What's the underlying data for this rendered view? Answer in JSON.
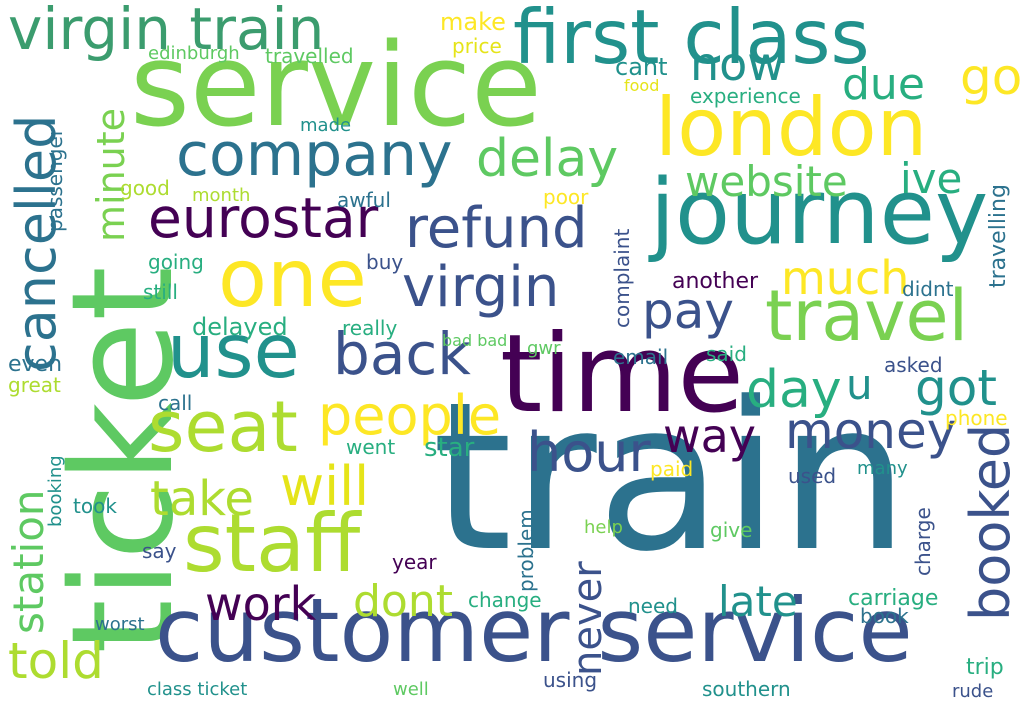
{
  "colors": {
    "background": "#ffffff",
    "palette": [
      "#440154",
      "#3b528b",
      "#2c728e",
      "#21918c",
      "#28ae80",
      "#5ec962",
      "#addc30",
      "#fde725"
    ]
  },
  "words": [
    {
      "text": "train",
      "color": "#2c728e"
    },
    {
      "text": "ticket",
      "color": "#5ec962"
    },
    {
      "text": "service",
      "color": "#7ad151"
    },
    {
      "text": "time",
      "color": "#440154"
    },
    {
      "text": "customer service",
      "color": "#3b528b"
    },
    {
      "text": "journey",
      "color": "#21918c"
    },
    {
      "text": "first class",
      "color": "#21918c"
    },
    {
      "text": "virgin train",
      "color": "#3b9c6e"
    },
    {
      "text": "company",
      "color": "#2c728e"
    },
    {
      "text": "london",
      "color": "#fde725"
    },
    {
      "text": "one",
      "color": "#fde725"
    },
    {
      "text": "use",
      "color": "#21918c"
    },
    {
      "text": "staff",
      "color": "#addc30"
    },
    {
      "text": "seat",
      "color": "#addc30"
    },
    {
      "text": "travel",
      "color": "#7ad151"
    },
    {
      "text": "virgin",
      "color": "#3b528b"
    },
    {
      "text": "refund",
      "color": "#3b528b"
    },
    {
      "text": "eurostar",
      "color": "#440154"
    },
    {
      "text": "delay",
      "color": "#5ec962"
    },
    {
      "text": "back",
      "color": "#3b528b"
    },
    {
      "text": "people",
      "color": "#fde725"
    },
    {
      "text": "money",
      "color": "#3b528b"
    },
    {
      "text": "hour",
      "color": "#3b528b"
    },
    {
      "text": "cancelled",
      "color": "#2c728e"
    },
    {
      "text": "booked",
      "color": "#3b528b"
    },
    {
      "text": "now",
      "color": "#21918c"
    },
    {
      "text": "due",
      "color": "#28ae80"
    },
    {
      "text": "go",
      "color": "#fde725"
    },
    {
      "text": "website",
      "color": "#5ec962"
    },
    {
      "text": "ive",
      "color": "#28ae80"
    },
    {
      "text": "much",
      "color": "#fde725"
    },
    {
      "text": "pay",
      "color": "#3b528b"
    },
    {
      "text": "day",
      "color": "#28ae80"
    },
    {
      "text": "got",
      "color": "#21918c"
    },
    {
      "text": "way",
      "color": "#440154"
    },
    {
      "text": "will",
      "color": "#e5e419"
    },
    {
      "text": "take",
      "color": "#addc30"
    },
    {
      "text": "work",
      "color": "#440154"
    },
    {
      "text": "dont",
      "color": "#addc30"
    },
    {
      "text": "late",
      "color": "#21918c"
    },
    {
      "text": "told",
      "color": "#addc30"
    },
    {
      "text": "station",
      "color": "#5ec962"
    },
    {
      "text": "never",
      "color": "#3b528b"
    },
    {
      "text": "minute",
      "color": "#7ad151"
    },
    {
      "text": "u",
      "color": "#21918c"
    },
    {
      "text": "make",
      "color": "#fde725"
    },
    {
      "text": "price",
      "color": "#e5e419"
    },
    {
      "text": "edinburgh",
      "color": "#5ec962"
    },
    {
      "text": "travelled",
      "color": "#5ec962"
    },
    {
      "text": "cant",
      "color": "#21918c"
    },
    {
      "text": "food",
      "color": "#e5e419"
    },
    {
      "text": "experience",
      "color": "#28ae80"
    },
    {
      "text": "made",
      "color": "#21918c"
    },
    {
      "text": "passenger",
      "color": "#2c728e"
    },
    {
      "text": "good",
      "color": "#addc30"
    },
    {
      "text": "month",
      "color": "#addc30"
    },
    {
      "text": "awful",
      "color": "#2c728e"
    },
    {
      "text": "poor",
      "color": "#fde725"
    },
    {
      "text": "travelling",
      "color": "#2c728e"
    },
    {
      "text": "complaint",
      "color": "#3b528b"
    },
    {
      "text": "going",
      "color": "#28ae80"
    },
    {
      "text": "buy",
      "color": "#3b528b"
    },
    {
      "text": "another",
      "color": "#440154"
    },
    {
      "text": "still",
      "color": "#28ae80"
    },
    {
      "text": "didnt",
      "color": "#2c728e"
    },
    {
      "text": "delayed",
      "color": "#28ae80"
    },
    {
      "text": "really",
      "color": "#28ae80"
    },
    {
      "text": "even",
      "color": "#2c728e"
    },
    {
      "text": "bad bad",
      "color": "#5ec962"
    },
    {
      "text": "gwr",
      "color": "#5ec962"
    },
    {
      "text": "email",
      "color": "#2c728e"
    },
    {
      "text": "said",
      "color": "#28ae80"
    },
    {
      "text": "asked",
      "color": "#3b528b"
    },
    {
      "text": "great",
      "color": "#addc30"
    },
    {
      "text": "call",
      "color": "#2c728e"
    },
    {
      "text": "phone",
      "color": "#fde725"
    },
    {
      "text": "went",
      "color": "#28ae80"
    },
    {
      "text": "star",
      "color": "#28ae80"
    },
    {
      "text": "booking",
      "color": "#21918c"
    },
    {
      "text": "paid",
      "color": "#fde725"
    },
    {
      "text": "many",
      "color": "#21918c"
    },
    {
      "text": "used",
      "color": "#3b528b"
    },
    {
      "text": "took",
      "color": "#21918c"
    },
    {
      "text": "help",
      "color": "#7ad151"
    },
    {
      "text": "give",
      "color": "#5ec962"
    },
    {
      "text": "charge",
      "color": "#3b528b"
    },
    {
      "text": "say",
      "color": "#3b528b"
    },
    {
      "text": "year",
      "color": "#440154"
    },
    {
      "text": "problem",
      "color": "#2c728e"
    },
    {
      "text": "change",
      "color": "#28ae80"
    },
    {
      "text": "carriage",
      "color": "#28ae80"
    },
    {
      "text": "need",
      "color": "#21918c"
    },
    {
      "text": "book",
      "color": "#2c728e"
    },
    {
      "text": "worst",
      "color": "#2c728e"
    },
    {
      "text": "trip",
      "color": "#28ae80"
    },
    {
      "text": "class ticket",
      "color": "#21918c"
    },
    {
      "text": "well",
      "color": "#5ec962"
    },
    {
      "text": "using",
      "color": "#3b528b"
    },
    {
      "text": "southern",
      "color": "#21918c"
    },
    {
      "text": "rude",
      "color": "#3b528b"
    }
  ]
}
